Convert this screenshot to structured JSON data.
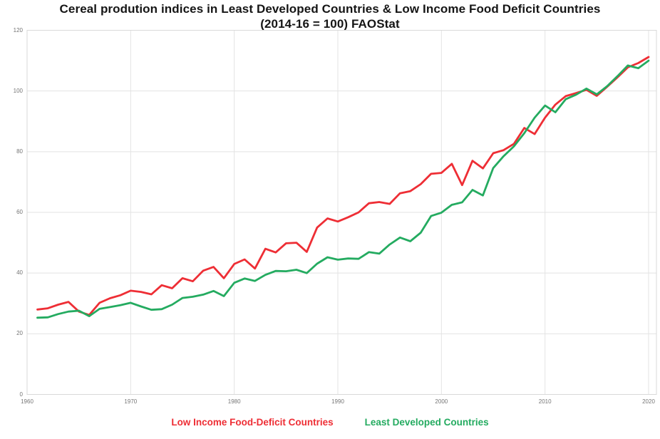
{
  "title": {
    "line1": "Cereal prodution indices in Least Developed Countries & Low Income Food Deficit Countries",
    "line2": "(2014-16 = 100) FAOStat"
  },
  "legend": [
    {
      "label": "Low Income Food-Deficit Countries",
      "color": "#ee2e35"
    },
    {
      "label": "Least Developed Countries",
      "color": "#24ab60"
    }
  ],
  "chart_data": {
    "type": "line",
    "title": "Cereal prodution indices in Least Developed Countries & Low Income Food Deficit Countries (2014-16 = 100) FAOStat",
    "xlabel": "",
    "ylabel": "",
    "x_ticks": [
      1960,
      1970,
      1980,
      1990,
      2000,
      2010,
      2020
    ],
    "y_ticks": [
      0,
      20,
      40,
      60,
      80,
      100,
      120
    ],
    "xlim": [
      1960,
      2020.8
    ],
    "ylim": [
      0,
      120
    ],
    "grid": true,
    "legend_position": "bottom",
    "x": [
      1961,
      1962,
      1963,
      1964,
      1965,
      1966,
      1967,
      1968,
      1969,
      1970,
      1971,
      1972,
      1973,
      1974,
      1975,
      1976,
      1977,
      1978,
      1979,
      1980,
      1981,
      1982,
      1983,
      1984,
      1985,
      1986,
      1987,
      1988,
      1989,
      1990,
      1991,
      1992,
      1993,
      1994,
      1995,
      1996,
      1997,
      1998,
      1999,
      2000,
      2001,
      2002,
      2003,
      2004,
      2005,
      2006,
      2007,
      2008,
      2009,
      2010,
      2011,
      2012,
      2013,
      2014,
      2015,
      2016,
      2017,
      2018,
      2019,
      2020
    ],
    "series": [
      {
        "name": "Low Income Food-Deficit Countries",
        "color": "#ee2e35",
        "values": [
          28.0,
          28.4,
          29.6,
          30.5,
          27.3,
          26.2,
          30.2,
          31.7,
          32.7,
          34.2,
          33.8,
          33.0,
          36.0,
          35.0,
          38.3,
          37.3,
          40.8,
          42.0,
          38.3,
          43.0,
          44.5,
          41.5,
          48.0,
          46.8,
          49.8,
          50.0,
          47.0,
          55.0,
          58.0,
          57.0,
          58.4,
          60.0,
          63.0,
          63.4,
          62.8,
          66.3,
          67.0,
          69.3,
          72.7,
          73.0,
          76.0,
          69.0,
          77.0,
          74.5,
          79.5,
          80.5,
          82.6,
          87.8,
          85.8,
          91.2,
          95.5,
          98.3,
          99.3,
          100.4,
          98.4,
          101.4,
          104.5,
          107.8,
          109.2,
          111.2
        ]
      },
      {
        "name": "Least Developed Countries",
        "color": "#24ab60",
        "values": [
          25.3,
          25.4,
          26.5,
          27.3,
          27.6,
          25.8,
          28.2,
          28.8,
          29.4,
          30.2,
          29.0,
          27.9,
          28.1,
          29.6,
          31.8,
          32.2,
          32.9,
          34.1,
          32.4,
          36.8,
          38.2,
          37.4,
          39.4,
          40.7,
          40.6,
          41.1,
          40.0,
          43.1,
          45.2,
          44.4,
          44.8,
          44.7,
          46.9,
          46.4,
          49.4,
          51.7,
          50.5,
          53.3,
          58.8,
          59.9,
          62.5,
          63.3,
          67.4,
          65.6,
          74.6,
          78.5,
          81.8,
          86.1,
          91.2,
          95.2,
          93.0,
          97.3,
          98.8,
          100.8,
          98.9,
          101.6,
          104.9,
          108.4,
          107.5,
          110.0
        ]
      }
    ],
    "style": {
      "grid_color": "#e3e3e3",
      "border_color": "#d9d9d9",
      "tick_color": "#757575",
      "line_width": 2.8
    }
  }
}
